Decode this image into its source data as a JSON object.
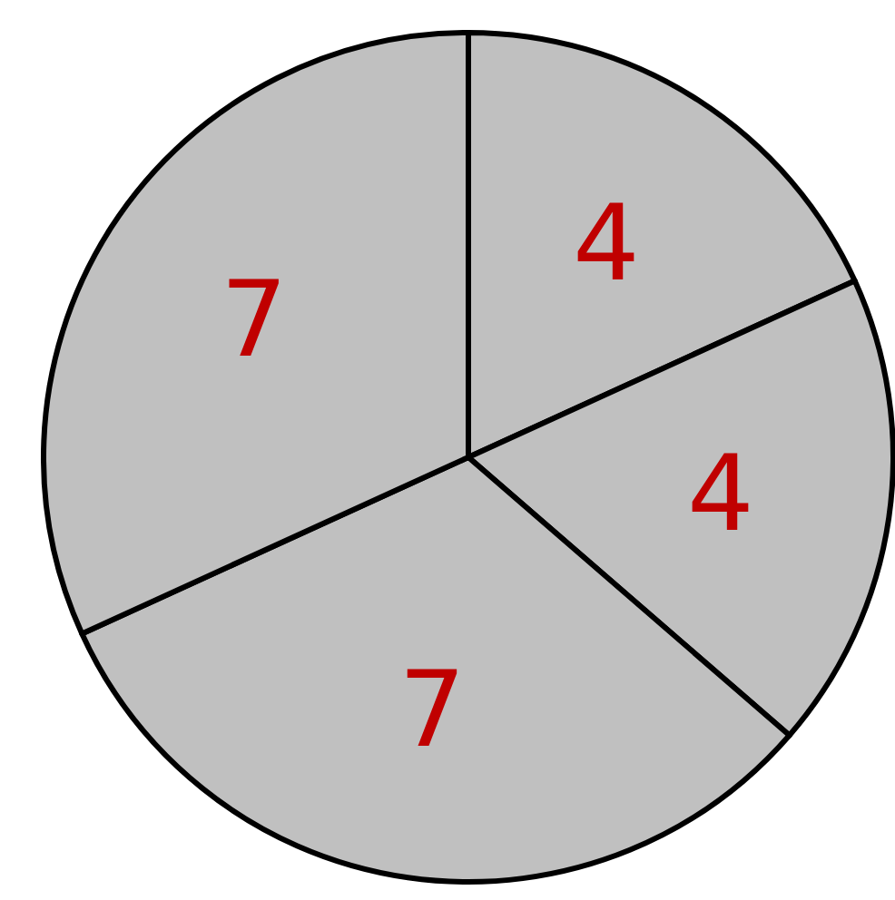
{
  "chart_data": {
    "type": "pie",
    "categories": [
      null,
      null,
      null,
      null
    ],
    "values": [
      4,
      4,
      7,
      7
    ],
    "colors": [
      "#c0c0c0",
      "#c0c0c0",
      "#c0c0c0",
      "#c0c0c0"
    ],
    "data_labels": true
  }
}
